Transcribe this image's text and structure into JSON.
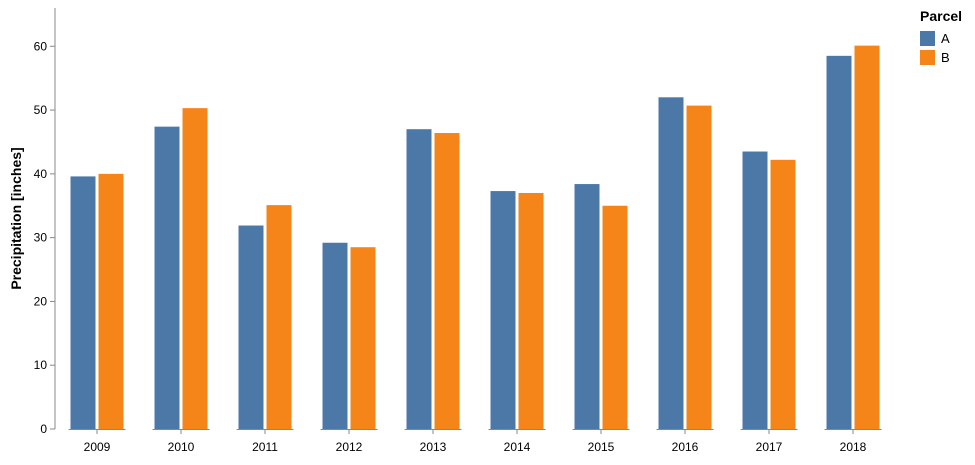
{
  "chart_data": {
    "type": "bar",
    "title": "",
    "xlabel": "",
    "ylabel": "Precipitation [inches]",
    "ylim": [
      0,
      66
    ],
    "yticks": [
      0,
      10,
      20,
      30,
      40,
      50,
      60
    ],
    "categories": [
      "2009",
      "2010",
      "2011",
      "2012",
      "2013",
      "2014",
      "2015",
      "2016",
      "2017",
      "2018"
    ],
    "series": [
      {
        "name": "A",
        "color": "#4c78a8",
        "values": [
          39.6,
          47.4,
          31.9,
          29.2,
          47.0,
          37.3,
          38.4,
          52.0,
          43.5,
          58.5
        ]
      },
      {
        "name": "B",
        "color": "#f58518",
        "values": [
          40.0,
          50.3,
          35.1,
          28.5,
          46.4,
          37.0,
          35.0,
          50.7,
          42.2,
          60.1
        ]
      }
    ],
    "grid": false,
    "legend": {
      "title": "Parcel",
      "placement": "top-right"
    }
  }
}
